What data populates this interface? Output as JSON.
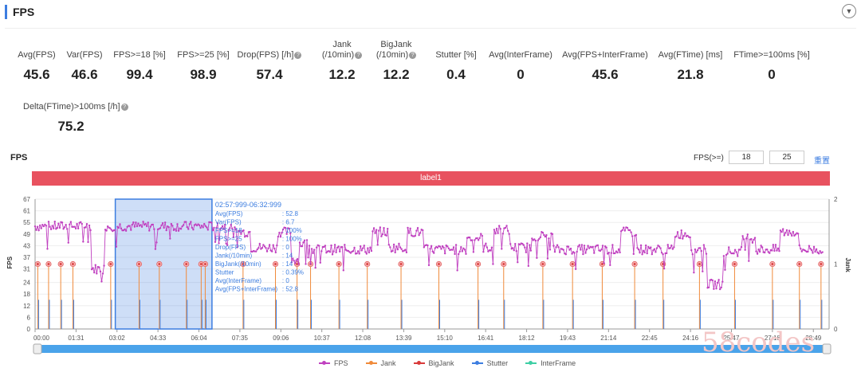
{
  "header": {
    "title": "FPS",
    "collapse_icon": "chevron-down-icon"
  },
  "metrics_row1": [
    {
      "label": "Avg(FPS)",
      "value": "45.6",
      "help": false
    },
    {
      "label": "Var(FPS)",
      "value": "46.6",
      "help": false
    },
    {
      "label": "FPS>=18 [%]",
      "value": "99.4",
      "help": false
    },
    {
      "label": "FPS>=25 [%]",
      "value": "98.9",
      "help": false
    },
    {
      "label": "Drop(FPS) [/h]",
      "value": "57.4",
      "help": true
    },
    {
      "label": "Jank\n(/10min)",
      "value": "12.2",
      "help": true
    },
    {
      "label": "BigJank\n(/10min)",
      "value": "12.2",
      "help": true
    },
    {
      "label": "Stutter [%]",
      "value": "0.4",
      "help": false
    },
    {
      "label": "Avg(InterFrame)",
      "value": "0",
      "help": false
    },
    {
      "label": "Avg(FPS+InterFrame)",
      "value": "45.6",
      "help": false
    },
    {
      "label": "Avg(FTime) [ms]",
      "value": "21.8",
      "help": false
    },
    {
      "label": "FTime>=100ms [%]",
      "value": "0",
      "help": false
    }
  ],
  "metrics_row2": [
    {
      "label": "Delta(FTime)>100ms [/h]",
      "value": "75.2",
      "help": true
    }
  ],
  "chart_panel": {
    "title": "FPS",
    "threshold_label": "FPS(>=)",
    "threshold_1": "18",
    "threshold_2": "25",
    "reset_label": "重置",
    "band_label": "label1"
  },
  "tooltip": {
    "range": "02:57:999-06:32:999",
    "rows": [
      [
        "Avg(FPS)",
        ": 52.8"
      ],
      [
        "Var(FPS)",
        ": 6.7"
      ],
      [
        "FPS>=18",
        ": 100%"
      ],
      [
        "FPS>=25",
        ": 100%"
      ],
      [
        "Drop(FPS)",
        ": 0"
      ],
      [
        "Jank(/10min)",
        ": 14"
      ],
      [
        "BigJank(/10min)",
        ": 14"
      ],
      [
        "Stutter",
        ": 0.39%"
      ],
      [
        "Avg(InterFrame)",
        ": 0"
      ],
      [
        "Avg(FPS+InterFrame)",
        ": 52.8"
      ]
    ]
  },
  "watermark": "58codes",
  "chart_data": {
    "type": "line",
    "ylabel": "FPS",
    "y2label": "Jank",
    "ylim": [
      0,
      67
    ],
    "y_ticks": [
      0,
      6,
      12,
      18,
      24,
      31,
      37,
      43,
      49,
      55,
      61,
      67
    ],
    "y2lim": [
      0,
      2
    ],
    "y2_ticks": [
      0,
      1,
      2
    ],
    "x_tick_labels": [
      "00:00",
      "01:31",
      "03:02",
      "04:33",
      "06:04",
      "07:35",
      "09:06",
      "10:37",
      "12:08",
      "13:39",
      "15:10",
      "16:41",
      "18:12",
      "19:43",
      "21:14",
      "22:45",
      "24:16",
      "25:47",
      "27:18",
      "28:49"
    ],
    "x_tick_minutes": [
      0,
      1.517,
      3.033,
      4.55,
      6.067,
      7.583,
      9.1,
      10.617,
      12.133,
      13.65,
      15.167,
      16.683,
      18.2,
      19.717,
      21.233,
      22.75,
      24.267,
      25.783,
      27.3,
      28.817
    ],
    "xlim_min": [
      0,
      29.4
    ],
    "fps_segments": [
      {
        "x0": 0.0,
        "x1": 2.1,
        "level": 53
      },
      {
        "x0": 2.1,
        "x1": 2.6,
        "level": 31
      },
      {
        "x0": 2.6,
        "x1": 6.4,
        "level": 53
      },
      {
        "x0": 6.4,
        "x1": 7.3,
        "level": 53
      },
      {
        "x0": 7.3,
        "x1": 8.0,
        "level": 50
      },
      {
        "x0": 8.0,
        "x1": 9.0,
        "level": 42
      },
      {
        "x0": 9.0,
        "x1": 9.5,
        "level": 50
      },
      {
        "x0": 9.5,
        "x1": 9.8,
        "level": 36
      },
      {
        "x0": 9.8,
        "x1": 10.2,
        "level": 44
      },
      {
        "x0": 10.2,
        "x1": 12.5,
        "level": 41
      },
      {
        "x0": 12.5,
        "x1": 13.1,
        "level": 50
      },
      {
        "x0": 13.1,
        "x1": 13.8,
        "level": 42
      },
      {
        "x0": 13.8,
        "x1": 14.4,
        "level": 50
      },
      {
        "x0": 14.4,
        "x1": 16.0,
        "level": 41
      },
      {
        "x0": 16.0,
        "x1": 16.6,
        "level": 47
      },
      {
        "x0": 16.6,
        "x1": 17.0,
        "level": 42
      },
      {
        "x0": 17.0,
        "x1": 17.6,
        "level": 51
      },
      {
        "x0": 17.6,
        "x1": 18.4,
        "level": 42
      },
      {
        "x0": 18.4,
        "x1": 19.2,
        "level": 48
      },
      {
        "x0": 19.2,
        "x1": 21.7,
        "level": 41
      },
      {
        "x0": 21.7,
        "x1": 22.3,
        "level": 50
      },
      {
        "x0": 22.3,
        "x1": 23.7,
        "level": 41
      },
      {
        "x0": 23.7,
        "x1": 24.3,
        "level": 49
      },
      {
        "x0": 24.3,
        "x1": 24.9,
        "level": 41
      },
      {
        "x0": 24.9,
        "x1": 25.5,
        "level": 23
      },
      {
        "x0": 25.5,
        "x1": 26.2,
        "level": 40
      },
      {
        "x0": 26.2,
        "x1": 26.7,
        "level": 47
      },
      {
        "x0": 26.7,
        "x1": 27.6,
        "level": 41
      },
      {
        "x0": 27.6,
        "x1": 28.3,
        "level": 50
      },
      {
        "x0": 28.3,
        "x1": 29.2,
        "level": 41
      }
    ],
    "jank_events_min": [
      0.1,
      0.5,
      0.95,
      1.4,
      2.8,
      3.85,
      4.6,
      5.6,
      6.15,
      6.3,
      7.7,
      8.9,
      9.7,
      10.2,
      11.25,
      12.3,
      13.55,
      14.95,
      16.4,
      17.35,
      18.8,
      19.9,
      21.0,
      22.2,
      23.25,
      24.6,
      25.9,
      27.3,
      28.3,
      29.1
    ],
    "jank_value": 1,
    "selection_min": [
      2.97,
      6.55
    ],
    "series": [
      {
        "name": "FPS",
        "color": "#c040c0"
      },
      {
        "name": "Jank",
        "color": "#f08a3a"
      },
      {
        "name": "BigJank",
        "color": "#d93a3a"
      },
      {
        "name": "Stutter",
        "color": "#3c7de0"
      },
      {
        "name": "InterFrame",
        "color": "#3ecfa5"
      }
    ]
  }
}
